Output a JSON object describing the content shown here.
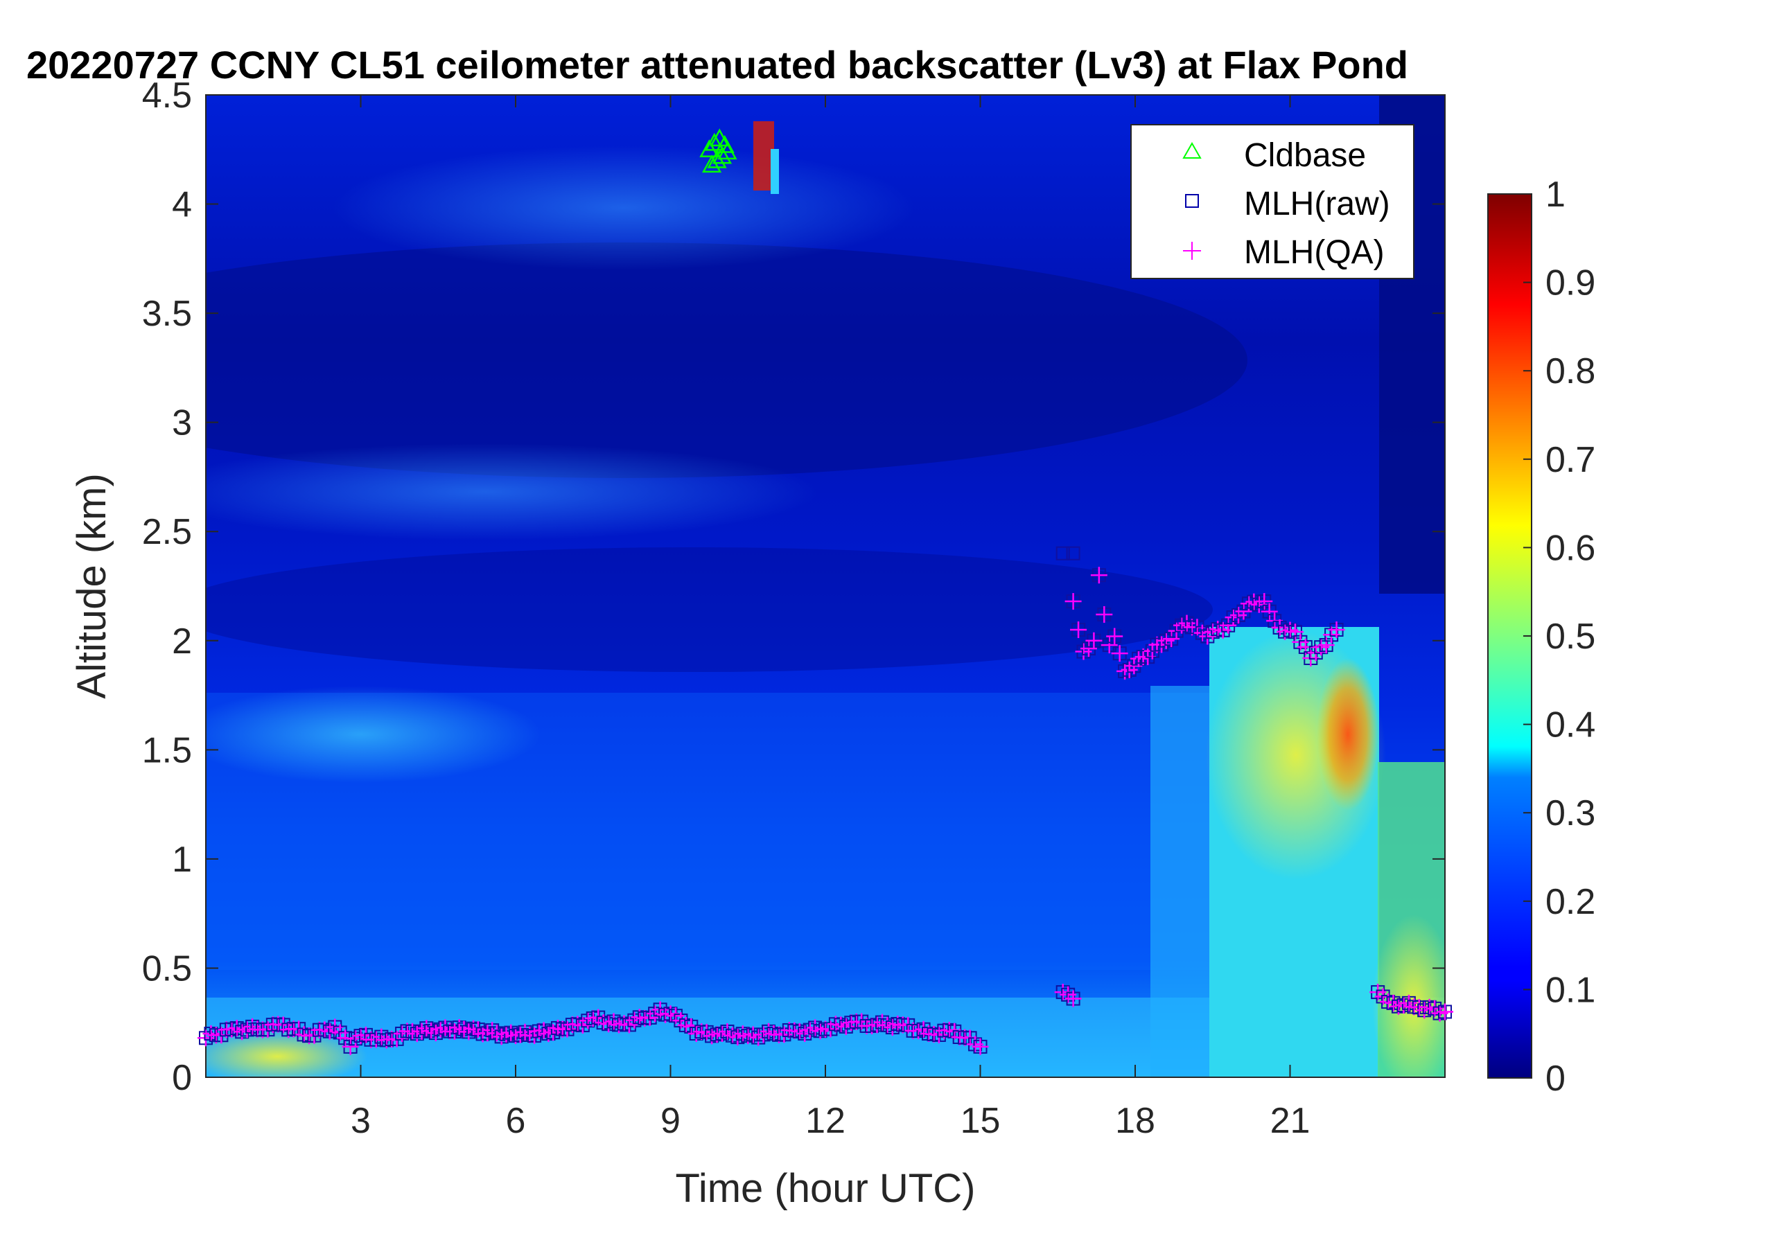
{
  "chart_data": {
    "type": "heatmap",
    "title": "20220727 CCNY CL51 ceilometer attenuated backscatter (Lv3) at Flax Pond",
    "xlabel": "Time (hour UTC)",
    "ylabel": "Altitude (km)",
    "xlim": [
      0,
      24
    ],
    "ylim": [
      0,
      4.5
    ],
    "xticks": [
      3,
      6,
      9,
      12,
      15,
      18,
      21
    ],
    "yticks": [
      0,
      0.5,
      1,
      1.5,
      2,
      2.5,
      3,
      3.5,
      4,
      4.5
    ],
    "colorbar": {
      "range": [
        0,
        1
      ],
      "ticks": [
        0,
        0.1,
        0.2,
        0.3,
        0.4,
        0.5,
        0.6,
        0.7,
        0.8,
        0.9,
        1
      ],
      "colormap": "jet"
    },
    "legend": {
      "placement": "top-right",
      "entries": [
        {
          "label": "Cldbase",
          "marker": "triangle",
          "color": "#00ff00"
        },
        {
          "label": "MLH(raw)",
          "marker": "square",
          "color": "#0000aa"
        },
        {
          "label": "MLH(QA)",
          "marker": "plus",
          "color": "#ff00ff"
        }
      ]
    },
    "cldbase_points": [
      {
        "t": 9.75,
        "h": 4.25
      },
      {
        "t": 9.85,
        "h": 4.28
      },
      {
        "t": 9.9,
        "h": 4.2
      },
      {
        "t": 9.95,
        "h": 4.3
      },
      {
        "t": 10.0,
        "h": 4.22
      },
      {
        "t": 10.05,
        "h": 4.27
      },
      {
        "t": 10.1,
        "h": 4.24
      },
      {
        "t": 9.8,
        "h": 4.18
      }
    ],
    "mlh_raw_points": [
      {
        "t": 16.6,
        "h": 2.4
      },
      {
        "t": 16.8,
        "h": 2.4
      }
    ],
    "mlh_qa": [
      {
        "t": 0.0,
        "h": 0.18
      },
      {
        "t": 0.5,
        "h": 0.22
      },
      {
        "t": 1.0,
        "h": 0.22
      },
      {
        "t": 1.5,
        "h": 0.24
      },
      {
        "t": 2.0,
        "h": 0.19
      },
      {
        "t": 2.5,
        "h": 0.23
      },
      {
        "t": 2.8,
        "h": 0.14
      },
      {
        "t": 3.0,
        "h": 0.19
      },
      {
        "t": 3.5,
        "h": 0.17
      },
      {
        "t": 4.0,
        "h": 0.21
      },
      {
        "t": 5.0,
        "h": 0.22
      },
      {
        "t": 6.0,
        "h": 0.19
      },
      {
        "t": 7.0,
        "h": 0.22
      },
      {
        "t": 7.5,
        "h": 0.27
      },
      {
        "t": 8.0,
        "h": 0.24
      },
      {
        "t": 8.5,
        "h": 0.27
      },
      {
        "t": 8.8,
        "h": 0.31
      },
      {
        "t": 9.2,
        "h": 0.26
      },
      {
        "t": 9.5,
        "h": 0.2
      },
      {
        "t": 10.0,
        "h": 0.2
      },
      {
        "t": 10.5,
        "h": 0.19
      },
      {
        "t": 11.0,
        "h": 0.2
      },
      {
        "t": 11.5,
        "h": 0.21
      },
      {
        "t": 12.0,
        "h": 0.22
      },
      {
        "t": 12.5,
        "h": 0.25
      },
      {
        "t": 13.0,
        "h": 0.24
      },
      {
        "t": 13.5,
        "h": 0.24
      },
      {
        "t": 14.0,
        "h": 0.2
      },
      {
        "t": 14.5,
        "h": 0.21
      },
      {
        "t": 15.0,
        "h": 0.14
      },
      {
        "t": 16.6,
        "h": 0.39
      },
      {
        "t": 16.8,
        "h": 0.36
      },
      {
        "t": 16.8,
        "h": 2.18
      },
      {
        "t": 16.9,
        "h": 2.05
      },
      {
        "t": 17.0,
        "h": 1.95
      },
      {
        "t": 17.2,
        "h": 2.0
      },
      {
        "t": 17.3,
        "h": 2.3
      },
      {
        "t": 17.4,
        "h": 2.12
      },
      {
        "t": 17.5,
        "h": 1.98
      },
      {
        "t": 17.6,
        "h": 2.02
      },
      {
        "t": 17.8,
        "h": 1.86
      },
      {
        "t": 18.6,
        "h": 2.0
      },
      {
        "t": 19.0,
        "h": 2.08
      },
      {
        "t": 19.4,
        "h": 2.02
      },
      {
        "t": 19.8,
        "h": 2.07
      },
      {
        "t": 20.2,
        "h": 2.17
      },
      {
        "t": 20.5,
        "h": 2.18
      },
      {
        "t": 20.8,
        "h": 2.06
      },
      {
        "t": 21.1,
        "h": 2.04
      },
      {
        "t": 21.4,
        "h": 1.92
      },
      {
        "t": 21.7,
        "h": 1.98
      },
      {
        "t": 21.9,
        "h": 2.05
      },
      {
        "t": 22.7,
        "h": 0.39
      },
      {
        "t": 23.0,
        "h": 0.34
      },
      {
        "t": 23.5,
        "h": 0.32
      },
      {
        "t": 24.0,
        "h": 0.3
      }
    ]
  }
}
